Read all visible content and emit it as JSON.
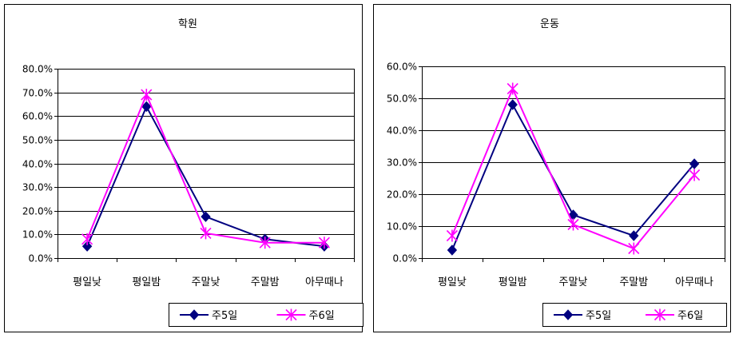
{
  "chart_data": [
    {
      "type": "line",
      "title": "학원",
      "categories": [
        "평일낮",
        "평일밤",
        "주말낮",
        "주말밤",
        "아무때나"
      ],
      "ylim": [
        0,
        80
      ],
      "yticks": [
        "0.0%",
        "10.0%",
        "20.0%",
        "30.0%",
        "40.0%",
        "50.0%",
        "60.0%",
        "70.0%",
        "80.0%"
      ],
      "grid": true,
      "legend_position": "bottom-right",
      "series": [
        {
          "name": "주5일",
          "values": [
            5,
            64,
            17.5,
            8,
            5
          ],
          "color": "#000080",
          "marker": "diamond"
        },
        {
          "name": "주6일",
          "values": [
            8,
            69,
            10.5,
            6.5,
            6.5
          ],
          "color": "#ff00ff",
          "marker": "star"
        }
      ]
    },
    {
      "type": "line",
      "title": "운동",
      "categories": [
        "평일낮",
        "평일밤",
        "주말낮",
        "주말밤",
        "아무때나"
      ],
      "ylim": [
        0,
        60
      ],
      "yticks": [
        "0.0%",
        "10.0%",
        "20.0%",
        "30.0%",
        "40.0%",
        "50.0%",
        "60.0%"
      ],
      "grid": true,
      "legend_position": "bottom-right",
      "series": [
        {
          "name": "주5일",
          "values": [
            2.5,
            48,
            13.5,
            7,
            29.5
          ],
          "color": "#000080",
          "marker": "diamond"
        },
        {
          "name": "주6일",
          "values": [
            7,
            53,
            10.5,
            3,
            26
          ],
          "color": "#ff00ff",
          "marker": "star"
        }
      ]
    }
  ]
}
